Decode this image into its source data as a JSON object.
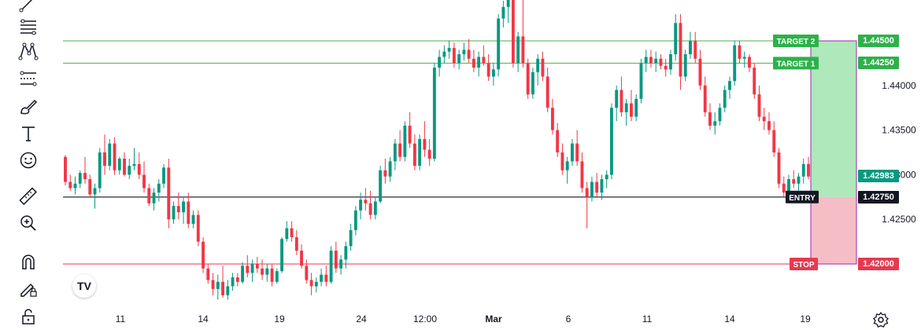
{
  "toolbar": {
    "tools": [
      {
        "name": "trendline-icon"
      },
      {
        "name": "fib-retracement-icon"
      },
      {
        "name": "pattern-icon"
      },
      {
        "name": "prediction-icon"
      },
      {
        "name": "brush-icon"
      },
      {
        "name": "text-icon"
      },
      {
        "name": "emoji-icon"
      },
      {
        "name": "ruler-icon"
      },
      {
        "name": "zoom-icon"
      },
      {
        "name": "magnet-icon"
      },
      {
        "name": "lock-drawing-icon"
      },
      {
        "name": "lock-icon"
      }
    ]
  },
  "logo": {
    "text": "TV"
  },
  "colors": {
    "up": "#089981",
    "down": "#f23645",
    "target_line": "#4caf50",
    "stop_line": "#f23645",
    "entry_line": "#131722",
    "profit_zone": "#a5e6b4",
    "loss_zone": "#f4b6bf",
    "current_price_bg": "#089981",
    "position_border": "#9c27b0"
  },
  "chart_data": {
    "type": "candlestick",
    "symbol": "",
    "ylim": [
      1.4135,
      1.452
    ],
    "yticks": [
      "1.42500",
      "1.43000",
      "1.43500",
      "1.44000"
    ],
    "xticks": [
      "11",
      "14",
      "19",
      "24",
      "12:00",
      "Mar",
      "6",
      "11",
      "14",
      "19"
    ],
    "levels": {
      "target2": {
        "label": "TARGET 2",
        "price": "1.44500"
      },
      "target1": {
        "label": "TARGET 1",
        "price": "1.44250"
      },
      "entry": {
        "label": "ENTRY",
        "price": "1.42750"
      },
      "stop": {
        "label": "STOP",
        "price": "1.42000"
      },
      "current": {
        "price": "1.42983"
      }
    },
    "candles_ohlc_note": "approximate OHLC read from chart",
    "candles": [
      [
        1.432,
        1.4322,
        1.4288,
        1.4292
      ],
      [
        1.4292,
        1.43,
        1.4282,
        1.4285
      ],
      [
        1.4285,
        1.4298,
        1.4278,
        1.429
      ],
      [
        1.429,
        1.4305,
        1.4285,
        1.4302
      ],
      [
        1.4302,
        1.432,
        1.429,
        1.4295
      ],
      [
        1.4295,
        1.43,
        1.4275,
        1.4278
      ],
      [
        1.4278,
        1.429,
        1.4262,
        1.4285
      ],
      [
        1.4285,
        1.433,
        1.428,
        1.4325
      ],
      [
        1.4325,
        1.4345,
        1.43,
        1.431
      ],
      [
        1.431,
        1.434,
        1.4305,
        1.4335
      ],
      [
        1.4335,
        1.4342,
        1.43,
        1.4305
      ],
      [
        1.4305,
        1.432,
        1.43,
        1.4318
      ],
      [
        1.4318,
        1.4325,
        1.4298,
        1.43
      ],
      [
        1.43,
        1.4318,
        1.4295,
        1.431
      ],
      [
        1.431,
        1.433,
        1.4305,
        1.4312
      ],
      [
        1.4312,
        1.4325,
        1.4295,
        1.43
      ],
      [
        1.43,
        1.4315,
        1.428,
        1.4285
      ],
      [
        1.4285,
        1.429,
        1.4265,
        1.4268
      ],
      [
        1.4268,
        1.4285,
        1.426,
        1.428
      ],
      [
        1.428,
        1.4295,
        1.427,
        1.429
      ],
      [
        1.429,
        1.4312,
        1.4285,
        1.4308
      ],
      [
        1.4308,
        1.4318,
        1.424,
        1.425
      ],
      [
        1.425,
        1.427,
        1.4245,
        1.4265
      ],
      [
        1.4265,
        1.428,
        1.425,
        1.4258
      ],
      [
        1.4258,
        1.4275,
        1.4245,
        1.427
      ],
      [
        1.427,
        1.428,
        1.424,
        1.4245
      ],
      [
        1.4245,
        1.426,
        1.424,
        1.4255
      ],
      [
        1.4255,
        1.426,
        1.422,
        1.4225
      ],
      [
        1.4225,
        1.423,
        1.419,
        1.4195
      ],
      [
        1.4195,
        1.42,
        1.4178,
        1.4182
      ],
      [
        1.4182,
        1.419,
        1.4165,
        1.4172
      ],
      [
        1.4172,
        1.4188,
        1.416,
        1.418
      ],
      [
        1.418,
        1.4198,
        1.4162,
        1.4165
      ],
      [
        1.4165,
        1.4182,
        1.416,
        1.4175
      ],
      [
        1.4175,
        1.419,
        1.417,
        1.4185
      ],
      [
        1.4185,
        1.419,
        1.4175,
        1.418
      ],
      [
        1.418,
        1.4202,
        1.4178,
        1.4198
      ],
      [
        1.4198,
        1.421,
        1.4185,
        1.419
      ],
      [
        1.419,
        1.4205,
        1.418,
        1.42
      ],
      [
        1.42,
        1.4208,
        1.419,
        1.4195
      ],
      [
        1.4195,
        1.4205,
        1.4182,
        1.4188
      ],
      [
        1.4188,
        1.42,
        1.418,
        1.4195
      ],
      [
        1.4195,
        1.42,
        1.4175,
        1.418
      ],
      [
        1.418,
        1.4195,
        1.4178,
        1.4192
      ],
      [
        1.4192,
        1.423,
        1.419,
        1.4228
      ],
      [
        1.4228,
        1.4248,
        1.4225,
        1.424
      ],
      [
        1.424,
        1.4248,
        1.4225,
        1.423
      ],
      [
        1.423,
        1.4238,
        1.421,
        1.4215
      ],
      [
        1.4215,
        1.4222,
        1.4195,
        1.4198
      ],
      [
        1.4198,
        1.4205,
        1.4178,
        1.4182
      ],
      [
        1.4182,
        1.419,
        1.4165,
        1.4175
      ],
      [
        1.4175,
        1.4185,
        1.4168,
        1.418
      ],
      [
        1.418,
        1.4195,
        1.4175,
        1.4188
      ],
      [
        1.4188,
        1.4198,
        1.4175,
        1.418
      ],
      [
        1.418,
        1.422,
        1.4178,
        1.4215
      ],
      [
        1.4215,
        1.4225,
        1.419,
        1.4195
      ],
      [
        1.4195,
        1.421,
        1.4188,
        1.4205
      ],
      [
        1.4205,
        1.4225,
        1.4195,
        1.422
      ],
      [
        1.422,
        1.4245,
        1.4215,
        1.4238
      ],
      [
        1.4238,
        1.4265,
        1.4232,
        1.426
      ],
      [
        1.426,
        1.428,
        1.425,
        1.4272
      ],
      [
        1.4272,
        1.4285,
        1.426,
        1.4268
      ],
      [
        1.4268,
        1.4282,
        1.425,
        1.4255
      ],
      [
        1.4255,
        1.4275,
        1.425,
        1.427
      ],
      [
        1.427,
        1.431,
        1.4268,
        1.4305
      ],
      [
        1.4305,
        1.4318,
        1.429,
        1.4298
      ],
      [
        1.4298,
        1.432,
        1.4292,
        1.4315
      ],
      [
        1.4315,
        1.434,
        1.4305,
        1.4335
      ],
      [
        1.4335,
        1.435,
        1.4315,
        1.432
      ],
      [
        1.432,
        1.436,
        1.4315,
        1.4355
      ],
      [
        1.4355,
        1.437,
        1.433,
        1.4335
      ],
      [
        1.4335,
        1.4345,
        1.4305,
        1.431
      ],
      [
        1.431,
        1.4345,
        1.4305,
        1.434
      ],
      [
        1.434,
        1.436,
        1.432,
        1.4328
      ],
      [
        1.4328,
        1.434,
        1.431,
        1.4318
      ],
      [
        1.4318,
        1.4425,
        1.4315,
        1.442
      ],
      [
        1.442,
        1.444,
        1.441,
        1.4432
      ],
      [
        1.4432,
        1.4445,
        1.4425,
        1.4438
      ],
      [
        1.4438,
        1.445,
        1.443,
        1.4442
      ],
      [
        1.4442,
        1.4448,
        1.442,
        1.4425
      ],
      [
        1.4425,
        1.444,
        1.4418,
        1.4435
      ],
      [
        1.4435,
        1.4448,
        1.4428,
        1.444
      ],
      [
        1.444,
        1.4452,
        1.4425,
        1.443
      ],
      [
        1.443,
        1.444,
        1.4415,
        1.442
      ],
      [
        1.442,
        1.4438,
        1.441,
        1.4432
      ],
      [
        1.4432,
        1.4445,
        1.4422,
        1.4425
      ],
      [
        1.4425,
        1.4435,
        1.4405,
        1.441
      ],
      [
        1.441,
        1.4425,
        1.44,
        1.4418
      ],
      [
        1.4418,
        1.448,
        1.441,
        1.4475
      ],
      [
        1.4475,
        1.4495,
        1.4465,
        1.4488
      ],
      [
        1.4488,
        1.452,
        1.447,
        1.451
      ],
      [
        1.451,
        1.452,
        1.442,
        1.4425
      ],
      [
        1.4425,
        1.446,
        1.4415,
        1.4455
      ],
      [
        1.4455,
        1.452,
        1.442,
        1.4425
      ],
      [
        1.4425,
        1.443,
        1.4385,
        1.439
      ],
      [
        1.439,
        1.442,
        1.4385,
        1.4415
      ],
      [
        1.4415,
        1.4435,
        1.44,
        1.443
      ],
      [
        1.443,
        1.4438,
        1.4405,
        1.441
      ],
      [
        1.441,
        1.442,
        1.437,
        1.4375
      ],
      [
        1.4375,
        1.4385,
        1.4345,
        1.435
      ],
      [
        1.435,
        1.4358,
        1.432,
        1.4325
      ],
      [
        1.4325,
        1.4335,
        1.43,
        1.4305
      ],
      [
        1.4305,
        1.432,
        1.429,
        1.4315
      ],
      [
        1.4315,
        1.434,
        1.431,
        1.4335
      ],
      [
        1.4335,
        1.435,
        1.431,
        1.4315
      ],
      [
        1.4315,
        1.4325,
        1.428,
        1.4285
      ],
      [
        1.4285,
        1.4292,
        1.424,
        1.4275
      ],
      [
        1.4275,
        1.4298,
        1.427,
        1.4292
      ],
      [
        1.4292,
        1.4302,
        1.4275,
        1.428
      ],
      [
        1.428,
        1.43,
        1.4272,
        1.4295
      ],
      [
        1.4295,
        1.4305,
        1.4285,
        1.43
      ],
      [
        1.43,
        1.438,
        1.4295,
        1.4375
      ],
      [
        1.4375,
        1.44,
        1.436,
        1.4395
      ],
      [
        1.4395,
        1.441,
        1.4365,
        1.437
      ],
      [
        1.437,
        1.4385,
        1.4355,
        1.438
      ],
      [
        1.438,
        1.4395,
        1.436,
        1.4365
      ],
      [
        1.4365,
        1.439,
        1.436,
        1.4385
      ],
      [
        1.4385,
        1.443,
        1.438,
        1.4425
      ],
      [
        1.4425,
        1.444,
        1.4415,
        1.4432
      ],
      [
        1.4432,
        1.444,
        1.442,
        1.4425
      ],
      [
        1.4425,
        1.4438,
        1.4415,
        1.443
      ],
      [
        1.443,
        1.4435,
        1.4418,
        1.4422
      ],
      [
        1.4422,
        1.443,
        1.441,
        1.4418
      ],
      [
        1.4418,
        1.444,
        1.4412,
        1.4435
      ],
      [
        1.4435,
        1.448,
        1.4428,
        1.447
      ],
      [
        1.447,
        1.448,
        1.4395,
        1.441
      ],
      [
        1.441,
        1.444,
        1.4405,
        1.4435
      ],
      [
        1.4435,
        1.446,
        1.443,
        1.445
      ],
      [
        1.445,
        1.446,
        1.4425,
        1.443
      ],
      [
        1.443,
        1.444,
        1.4395,
        1.44
      ],
      [
        1.44,
        1.441,
        1.4365,
        1.437
      ],
      [
        1.437,
        1.438,
        1.435,
        1.4355
      ],
      [
        1.4355,
        1.437,
        1.4345,
        1.436
      ],
      [
        1.436,
        1.438,
        1.4355,
        1.4375
      ],
      [
        1.4375,
        1.44,
        1.437,
        1.4395
      ],
      [
        1.4395,
        1.441,
        1.4385,
        1.4405
      ],
      [
        1.4405,
        1.445,
        1.44,
        1.4445
      ],
      [
        1.4445,
        1.445,
        1.4425,
        1.443
      ],
      [
        1.443,
        1.4438,
        1.442,
        1.4432
      ],
      [
        1.4432,
        1.4435,
        1.4415,
        1.442
      ],
      [
        1.442,
        1.4425,
        1.4385,
        1.439
      ],
      [
        1.439,
        1.44,
        1.436,
        1.4365
      ],
      [
        1.4365,
        1.4375,
        1.435,
        1.436
      ],
      [
        1.436,
        1.437,
        1.4345,
        1.435
      ],
      [
        1.435,
        1.436,
        1.432,
        1.4325
      ],
      [
        1.4325,
        1.433,
        1.4285,
        1.429
      ],
      [
        1.429,
        1.4298,
        1.4275,
        1.428
      ],
      [
        1.428,
        1.43,
        1.4275,
        1.4295
      ],
      [
        1.4295,
        1.4305,
        1.4285,
        1.429
      ],
      [
        1.429,
        1.4302,
        1.4282,
        1.4298
      ],
      [
        1.4298,
        1.4318,
        1.429,
        1.4312
      ],
      [
        1.4312,
        1.432,
        1.4295,
        1.4298
      ]
    ]
  }
}
